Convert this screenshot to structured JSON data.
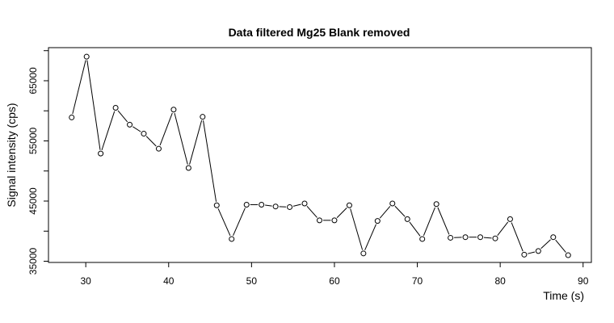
{
  "chart_data": {
    "type": "line",
    "title": "Data filtered Mg25 Blank removed",
    "xlabel": "Time (s)",
    "ylabel": "Signal intensity (cps)",
    "xlim": [
      25.5,
      91
    ],
    "ylim": [
      34800,
      70500
    ],
    "xticks": [
      30,
      40,
      50,
      60,
      70,
      80,
      90
    ],
    "xtick_labels": [
      "30",
      "40",
      "50",
      "60",
      "70",
      "80",
      "90"
    ],
    "yticks": [
      35000,
      40000,
      45000,
      50000,
      55000,
      60000,
      65000,
      70000
    ],
    "ytick_labels": [
      "35000",
      "",
      "45000",
      "",
      "55000",
      "",
      "65000",
      ""
    ],
    "grid": false,
    "markers": "open-circle",
    "series": [
      {
        "x": [
          28.3,
          30.1,
          31.8,
          33.6,
          35.3,
          37.0,
          38.8,
          40.6,
          42.4,
          44.1,
          45.8,
          47.6,
          49.4,
          51.2,
          52.9,
          54.6,
          56.4,
          58.2,
          60.0,
          61.8,
          63.5,
          65.2,
          67.0,
          68.8,
          70.6,
          72.3,
          74.0,
          75.8,
          77.6,
          79.4,
          81.2,
          82.9,
          84.6,
          86.4,
          88.2
        ],
        "y": [
          58900,
          69000,
          52900,
          60500,
          57700,
          56200,
          53700,
          60200,
          50500,
          59000,
          44300,
          38700,
          44400,
          44400,
          44100,
          44000,
          44600,
          41800,
          41800,
          44300,
          36300,
          41700,
          44600,
          42000,
          38700,
          44500,
          38900,
          39000,
          39000,
          38800,
          42000,
          36100,
          36700,
          39000,
          36000
        ]
      }
    ]
  }
}
